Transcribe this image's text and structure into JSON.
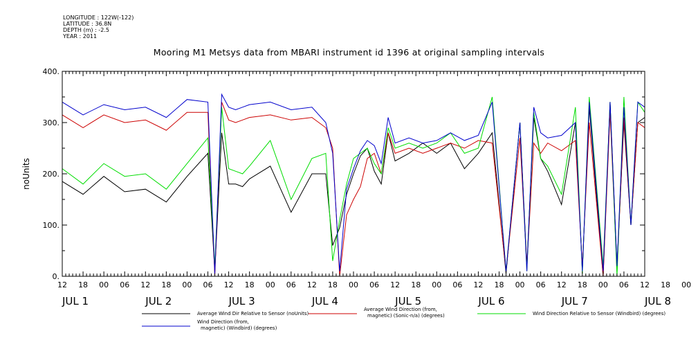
{
  "meta": {
    "lines": [
      "LONGITUDE : 122W(-122)",
      "LATITUDE : 36.8N",
      "DEPTH (m) : -2.5",
      "YEAR : 2011"
    ]
  },
  "chart_data": {
    "type": "line",
    "title": "Mooring M1 Metsys data from MBARI instrument id 1396 at original sampling intervals",
    "xlabel": "",
    "ylabel": "noUnits",
    "ylim": [
      0,
      400
    ],
    "yticks": [
      "0.",
      "100.",
      "200.",
      "300.",
      "400."
    ],
    "xlim_hours": [
      0,
      168
    ],
    "hour_ticks": [
      "12",
      "18",
      "00",
      "06",
      "12",
      "18",
      "00",
      "06",
      "12",
      "18",
      "00",
      "06",
      "12",
      "18",
      "00",
      "06",
      "12",
      "18",
      "00",
      "06",
      "12",
      "18",
      "00",
      "06",
      "12",
      "18",
      "00",
      "06",
      "12",
      "18",
      "00",
      "06",
      "12"
    ],
    "day_labels": [
      "JUL 1",
      "JUL 2",
      "JUL 3",
      "JUL 4",
      "JUL 5",
      "JUL 6",
      "JUL 7",
      "JUL 8"
    ],
    "grid": false,
    "legend_placement": "bottom",
    "series": [
      {
        "name": "Average Wind Dir Relative to Sensor (noUnits)",
        "color": "#000000",
        "x": [
          0,
          6,
          12,
          18,
          24,
          30,
          36,
          42,
          44,
          46,
          48,
          50,
          52,
          54,
          60,
          66,
          72,
          76,
          78,
          80,
          82,
          84,
          86,
          88,
          90,
          92,
          94,
          96,
          100,
          104,
          108,
          112,
          116,
          120,
          124,
          128,
          132,
          134,
          136,
          138,
          140,
          144,
          148,
          150,
          152,
          156,
          158,
          160,
          162,
          164,
          166,
          168
        ],
        "y": [
          185,
          160,
          195,
          165,
          170,
          145,
          195,
          240,
          10,
          280,
          180,
          180,
          175,
          190,
          215,
          125,
          200,
          200,
          60,
          95,
          160,
          200,
          235,
          250,
          205,
          180,
          280,
          225,
          240,
          260,
          240,
          260,
          210,
          240,
          280,
          5,
          300,
          20,
          310,
          230,
          205,
          140,
          300,
          10,
          330,
          0,
          340,
          20,
          300,
          100,
          300,
          310
        ]
      },
      {
        "name": "Average Wind Direction (from, magnetic) (Sonic-n/a) (degrees)",
        "color": "#cc0000",
        "x": [
          0,
          6,
          12,
          18,
          24,
          30,
          36,
          42,
          44,
          46,
          48,
          50,
          52,
          54,
          60,
          66,
          72,
          76,
          78,
          80,
          82,
          84,
          86,
          88,
          90,
          92,
          94,
          96,
          100,
          104,
          108,
          112,
          116,
          120,
          124,
          128,
          132,
          134,
          136,
          138,
          140,
          144,
          148,
          150,
          152,
          156,
          158,
          160,
          162,
          164,
          166,
          168
        ],
        "y": [
          315,
          290,
          315,
          300,
          305,
          285,
          320,
          320,
          0,
          340,
          305,
          300,
          305,
          310,
          315,
          305,
          310,
          290,
          250,
          0,
          120,
          150,
          175,
          230,
          240,
          200,
          280,
          240,
          250,
          240,
          250,
          260,
          250,
          265,
          260,
          10,
          270,
          20,
          260,
          240,
          260,
          245,
          265,
          20,
          300,
          0,
          320,
          10,
          310,
          100,
          300,
          290
        ]
      },
      {
        "name": "Wind Direction Relative to Sensor (Windbird) (degrees)",
        "color": "#00dd00",
        "x": [
          0,
          6,
          12,
          18,
          24,
          30,
          36,
          42,
          44,
          46,
          48,
          50,
          52,
          54,
          60,
          66,
          72,
          76,
          78,
          80,
          82,
          84,
          86,
          88,
          90,
          92,
          94,
          96,
          100,
          104,
          108,
          112,
          116,
          120,
          124,
          128,
          132,
          134,
          136,
          138,
          140,
          144,
          148,
          150,
          152,
          156,
          158,
          160,
          162,
          164,
          166,
          168
        ],
        "y": [
          210,
          180,
          220,
          195,
          200,
          170,
          220,
          270,
          20,
          330,
          210,
          205,
          200,
          215,
          265,
          150,
          230,
          240,
          30,
          110,
          180,
          230,
          240,
          250,
          220,
          200,
          290,
          250,
          260,
          250,
          260,
          280,
          240,
          250,
          350,
          10,
          300,
          10,
          320,
          230,
          215,
          160,
          330,
          5,
          350,
          20,
          340,
          0,
          350,
          100,
          340,
          320
        ]
      },
      {
        "name": "Wind Direction (from, magnetic) (Windbird) (degrees)",
        "color": "#0000cc",
        "x": [
          0,
          6,
          12,
          18,
          24,
          30,
          36,
          42,
          44,
          46,
          48,
          50,
          52,
          54,
          60,
          66,
          72,
          76,
          78,
          80,
          82,
          84,
          86,
          88,
          90,
          92,
          94,
          96,
          100,
          104,
          108,
          112,
          116,
          120,
          124,
          128,
          132,
          134,
          136,
          138,
          140,
          144,
          148,
          150,
          152,
          156,
          158,
          160,
          162,
          164,
          166,
          168
        ],
        "y": [
          340,
          315,
          335,
          325,
          330,
          310,
          345,
          340,
          5,
          355,
          330,
          325,
          330,
          335,
          340,
          325,
          330,
          300,
          240,
          10,
          170,
          210,
          245,
          265,
          255,
          220,
          310,
          260,
          270,
          260,
          265,
          280,
          265,
          275,
          340,
          10,
          300,
          10,
          330,
          280,
          270,
          275,
          300,
          10,
          340,
          10,
          340,
          20,
          330,
          100,
          340,
          330
        ]
      }
    ]
  }
}
